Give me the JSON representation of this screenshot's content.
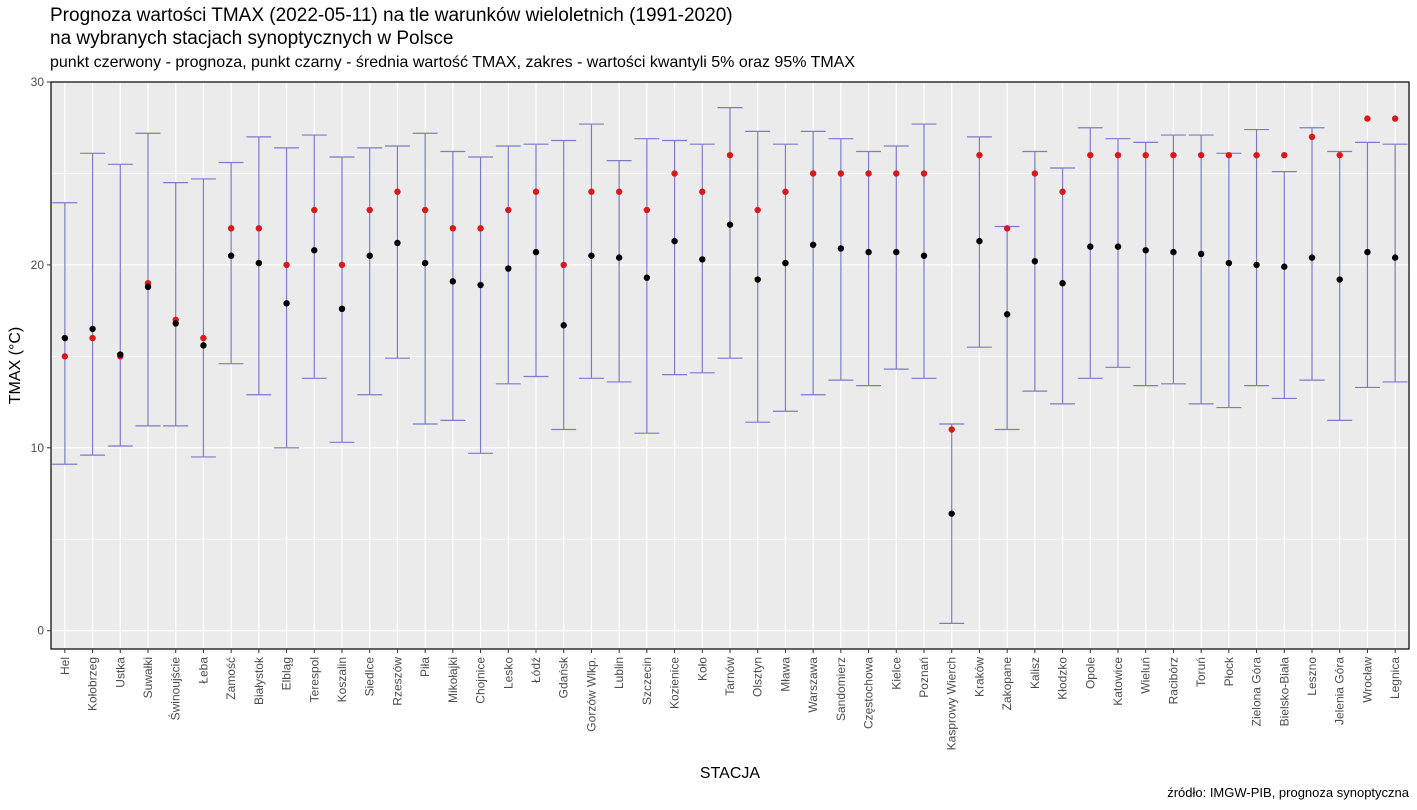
{
  "header": {
    "title_line1": "Prognoza wartości TMAX (2022-05-11) na tle warunków wieloletnich (1991-2020)",
    "title_line2": "na wybranych stacjach synoptycznych w Polsce",
    "subtitle": "punkt czerwony - prognoza, punkt czarny - średnia wartość TMAX, zakres - wartości kwantyli 5% oraz 95% TMAX"
  },
  "caption": "źródło: IMGW-PIB, prognoza synoptyczna",
  "colors": {
    "forecast": "#d7191c",
    "mean": "#000000",
    "range": "#7b7bc8",
    "panel": "#ebebeb",
    "grid": "#ffffff"
  },
  "chart_data": {
    "type": "scatter",
    "xlabel": "STACJA",
    "ylabel": "TMAX (°C)",
    "ylim": [
      -1,
      30
    ],
    "yticks": [
      0,
      10,
      20,
      30
    ],
    "grid": true,
    "categories": [
      "Hel",
      "Kołobrzeg",
      "Ustka",
      "Suwałki",
      "Świnoujście",
      "Łeba",
      "Zamość",
      "Białystok",
      "Elbląg",
      "Terespol",
      "Koszalin",
      "Siedlce",
      "Rzeszów",
      "Piła",
      "Mikołajki",
      "Chojnice",
      "Lesko",
      "Łódź",
      "Gdańsk",
      "Gorzów Wlkp.",
      "Lublin",
      "Szczecin",
      "Kozienice",
      "Koło",
      "Tarnów",
      "Olsztyn",
      "Mława",
      "Warszawa",
      "Sandomierz",
      "Częstochowa",
      "Kielce",
      "Poznań",
      "Kasprowy Wierch",
      "Kraków",
      "Zakopane",
      "Kalisz",
      "Kłodzko",
      "Opole",
      "Katowice",
      "Wieluń",
      "Racibórz",
      "Toruń",
      "Płock",
      "Zielona Góra",
      "Bielsko-Biała",
      "Leszno",
      "Jelenia Góra",
      "Wrocław",
      "Legnica"
    ],
    "series": [
      {
        "name": "prognoza",
        "values": [
          15,
          16,
          15,
          19,
          17,
          16,
          22,
          22,
          20,
          23,
          20,
          23,
          24,
          23,
          22,
          22,
          23,
          24,
          20,
          24,
          24,
          23,
          25,
          24,
          26,
          23,
          24,
          25,
          25,
          25,
          25,
          25,
          11,
          26,
          22,
          25,
          24,
          26,
          26,
          26,
          26,
          26,
          26,
          26,
          26,
          27,
          26,
          28,
          28
        ]
      },
      {
        "name": "średnia",
        "values": [
          16.0,
          16.5,
          15.1,
          18.8,
          16.8,
          15.6,
          20.5,
          20.1,
          17.9,
          20.8,
          17.6,
          20.5,
          21.2,
          20.1,
          19.1,
          18.9,
          19.8,
          20.7,
          16.7,
          20.5,
          20.4,
          19.3,
          21.3,
          20.3,
          22.2,
          19.2,
          20.1,
          21.1,
          20.9,
          20.7,
          20.7,
          20.5,
          6.4,
          21.3,
          17.3,
          20.2,
          19.0,
          21.0,
          21.0,
          20.8,
          20.7,
          20.6,
          20.1,
          20.0,
          19.9,
          20.4,
          19.2,
          20.7,
          20.4
        ]
      },
      {
        "name": "kwantyl 5%",
        "values": [
          9.1,
          9.6,
          10.1,
          11.2,
          11.2,
          9.5,
          14.6,
          12.9,
          10.0,
          13.8,
          10.3,
          12.9,
          14.9,
          11.3,
          11.5,
          9.7,
          13.5,
          13.9,
          11.0,
          13.8,
          13.6,
          10.8,
          14.0,
          14.1,
          14.9,
          11.4,
          12.0,
          12.9,
          13.7,
          13.4,
          14.3,
          13.8,
          0.4,
          15.5,
          11.0,
          13.1,
          12.4,
          13.8,
          14.4,
          13.4,
          13.5,
          12.4,
          12.2,
          13.4,
          12.7,
          13.7,
          11.5,
          13.3,
          13.6
        ]
      },
      {
        "name": "kwantyl 95%",
        "values": [
          23.4,
          26.1,
          25.5,
          27.2,
          24.5,
          24.7,
          25.6,
          27.0,
          26.4,
          27.1,
          25.9,
          26.4,
          26.5,
          27.2,
          26.2,
          25.9,
          26.5,
          26.6,
          26.8,
          27.7,
          25.7,
          26.9,
          26.8,
          26.6,
          28.6,
          27.3,
          26.6,
          27.3,
          26.9,
          26.2,
          26.5,
          27.7,
          11.3,
          27.0,
          22.1,
          26.2,
          25.3,
          27.5,
          26.9,
          26.7,
          27.1,
          27.1,
          26.1,
          27.4,
          25.1,
          27.5,
          26.2,
          26.7,
          26.6
        ]
      }
    ]
  }
}
